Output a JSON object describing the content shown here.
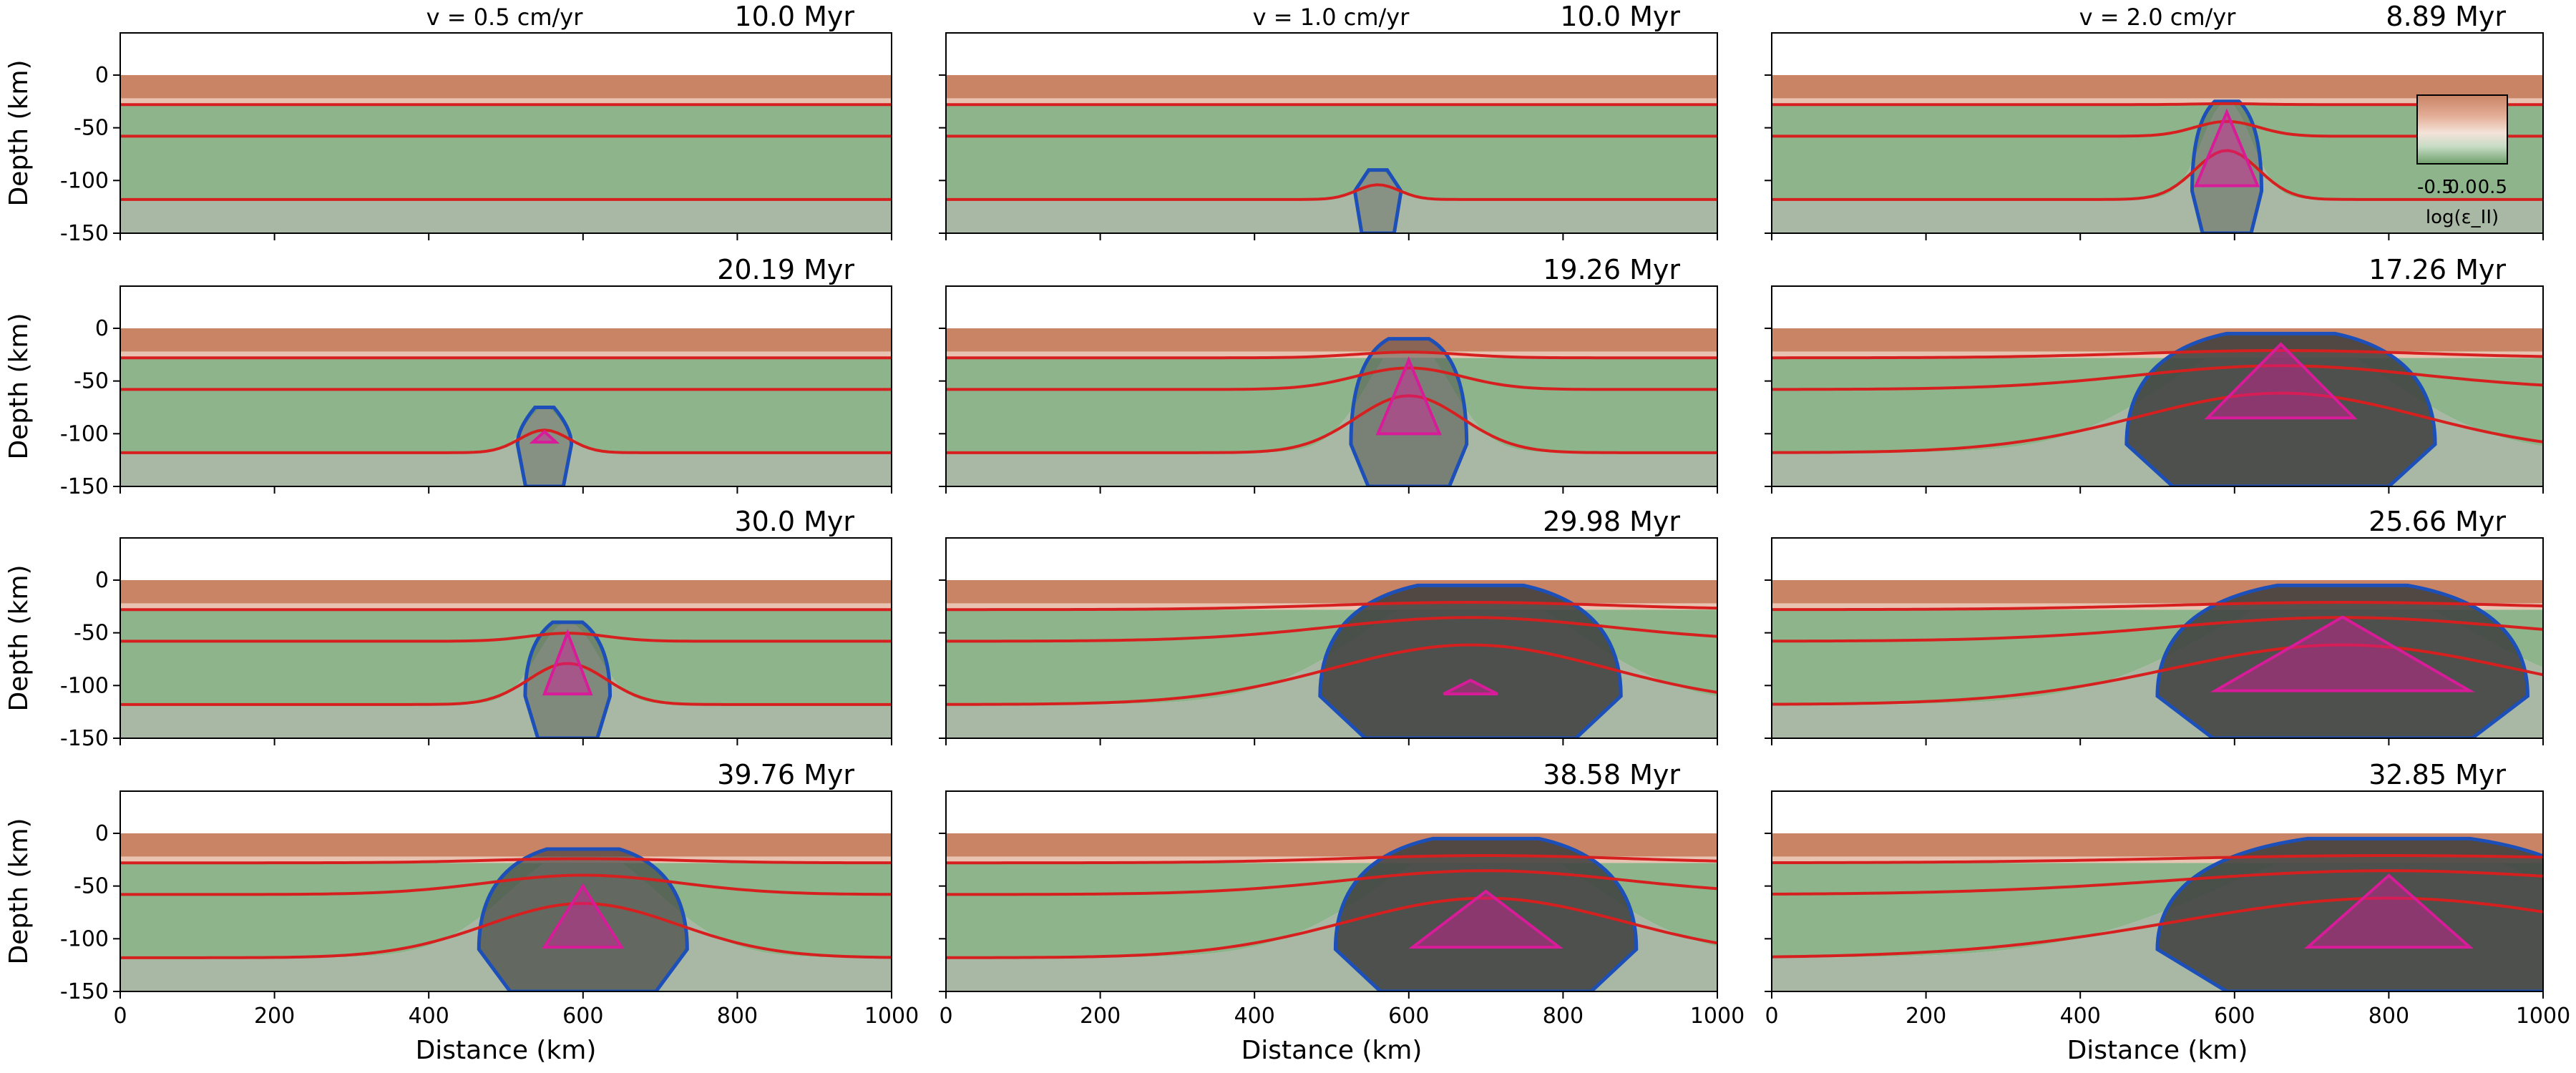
{
  "figure": {
    "velocity_labels": [
      "v = 0.5 cm/yr",
      "v = 1.0 cm/yr",
      "v = 2.0 cm/yr"
    ],
    "colorbar": {
      "tick_labels": [
        "-0.5",
        "0.0",
        "0.5"
      ],
      "label": "log(ε_II)",
      "colors": [
        "#c98466",
        "#e9c3b1",
        "#f4e3d9",
        "#c6dcc4",
        "#6fa06c"
      ]
    }
  },
  "chart_data": {
    "type": "cross-section",
    "xlabel": "Distance (km)",
    "ylabel": "Depth (km)",
    "xlim": [
      0,
      1000
    ],
    "ylim": [
      -150,
      40
    ],
    "xticks": [
      0,
      200,
      400,
      600,
      800,
      1000
    ],
    "yticks": [
      0,
      -50,
      -100,
      -150
    ],
    "colors": {
      "upper_crust": "#c98466",
      "lower_crust": "#e9c3b1",
      "mantle_lithosphere": "#8db48a",
      "asthenosphere": "#a9b8a4",
      "isotherm": "#d62020",
      "plume_contour": "#1d4fb8",
      "melt_region": "#d81b98",
      "deformed": "#3d3d3d"
    },
    "panels": [
      {
        "row": 0,
        "col": 0,
        "time_label": "10.0 Myr",
        "center": 560,
        "half_width": 0,
        "depth_top": -118,
        "melt_top": null,
        "melt_half_width": 0
      },
      {
        "row": 0,
        "col": 1,
        "time_label": "10.0 Myr",
        "center": 560,
        "half_width": 30,
        "depth_top": -90,
        "melt_top": null,
        "melt_half_width": 0
      },
      {
        "row": 0,
        "col": 2,
        "time_label": "8.89 Myr",
        "center": 590,
        "half_width": 45,
        "depth_top": -25,
        "melt_top": -35,
        "melt_half_width": 40
      },
      {
        "row": 1,
        "col": 0,
        "time_label": "20.19 Myr",
        "center": 550,
        "half_width": 35,
        "depth_top": -75,
        "melt_top": -98,
        "melt_half_width": 15
      },
      {
        "row": 1,
        "col": 1,
        "time_label": "19.26 Myr",
        "center": 600,
        "half_width": 75,
        "depth_top": -10,
        "melt_top": -30,
        "melt_half_width": 40
      },
      {
        "row": 1,
        "col": 2,
        "time_label": "17.26 Myr",
        "center": 660,
        "half_width": 200,
        "depth_top": -5,
        "melt_top": -15,
        "melt_half_width": 95
      },
      {
        "row": 2,
        "col": 0,
        "time_label": "30.0 Myr",
        "center": 580,
        "half_width": 55,
        "depth_top": -40,
        "melt_top": -50,
        "melt_half_width": 30
      },
      {
        "row": 2,
        "col": 1,
        "time_label": "29.98 Myr",
        "center": 680,
        "half_width": 195,
        "depth_top": -5,
        "melt_top": -95,
        "melt_half_width": 35
      },
      {
        "row": 2,
        "col": 2,
        "time_label": "25.66 Myr",
        "center": 740,
        "half_width": 240,
        "depth_top": -5,
        "melt_top": -35,
        "melt_half_width": 165
      },
      {
        "row": 3,
        "col": 0,
        "time_label": "39.76 Myr",
        "center": 600,
        "half_width": 135,
        "depth_top": -15,
        "melt_top": -50,
        "melt_half_width": 50
      },
      {
        "row": 3,
        "col": 1,
        "time_label": "38.58 Myr",
        "center": 700,
        "half_width": 195,
        "depth_top": -5,
        "melt_top": -55,
        "melt_half_width": 95
      },
      {
        "row": 3,
        "col": 2,
        "time_label": "32.85 Myr",
        "center": 800,
        "half_width": 300,
        "depth_top": -5,
        "melt_top": -40,
        "melt_half_width": 105
      }
    ]
  }
}
